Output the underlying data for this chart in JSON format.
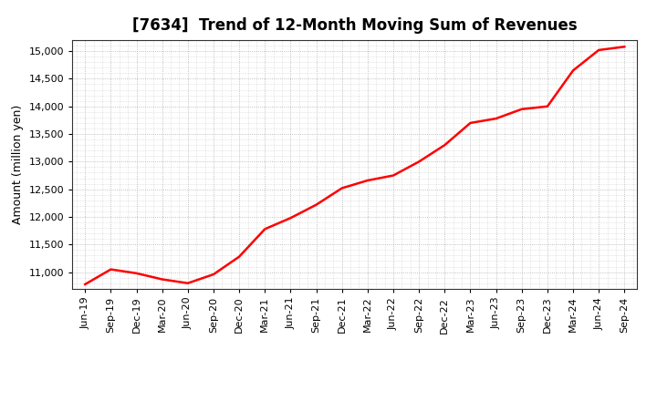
{
  "title": "[7634]  Trend of 12-Month Moving Sum of Revenues",
  "ylabel": "Amount (million yen)",
  "line_color": "#FF0000",
  "line_width": 1.8,
  "background_color": "#FFFFFF",
  "plot_bg_color": "#FFFFFF",
  "grid_color": "#999999",
  "ylim": [
    10700,
    15200
  ],
  "yticks": [
    11000,
    11500,
    12000,
    12500,
    13000,
    13500,
    14000,
    14500,
    15000
  ],
  "values": [
    10780,
    11050,
    10980,
    10870,
    10800,
    10960,
    11280,
    11780,
    11980,
    12220,
    12520,
    12660,
    12750,
    13000,
    13300,
    13700,
    13780,
    13950,
    14000,
    14650,
    15020,
    15080
  ],
  "xtick_labels": [
    "Jun-19",
    "Sep-19",
    "Dec-19",
    "Mar-20",
    "Jun-20",
    "Sep-20",
    "Dec-20",
    "Mar-21",
    "Jun-21",
    "Sep-21",
    "Dec-21",
    "Mar-22",
    "Jun-22",
    "Sep-22",
    "Dec-22",
    "Mar-23",
    "Jun-23",
    "Sep-23",
    "Dec-23",
    "Mar-24",
    "Jun-24",
    "Sep-24"
  ],
  "title_fontsize": 12,
  "ylabel_fontsize": 9,
  "tick_fontsize": 8
}
